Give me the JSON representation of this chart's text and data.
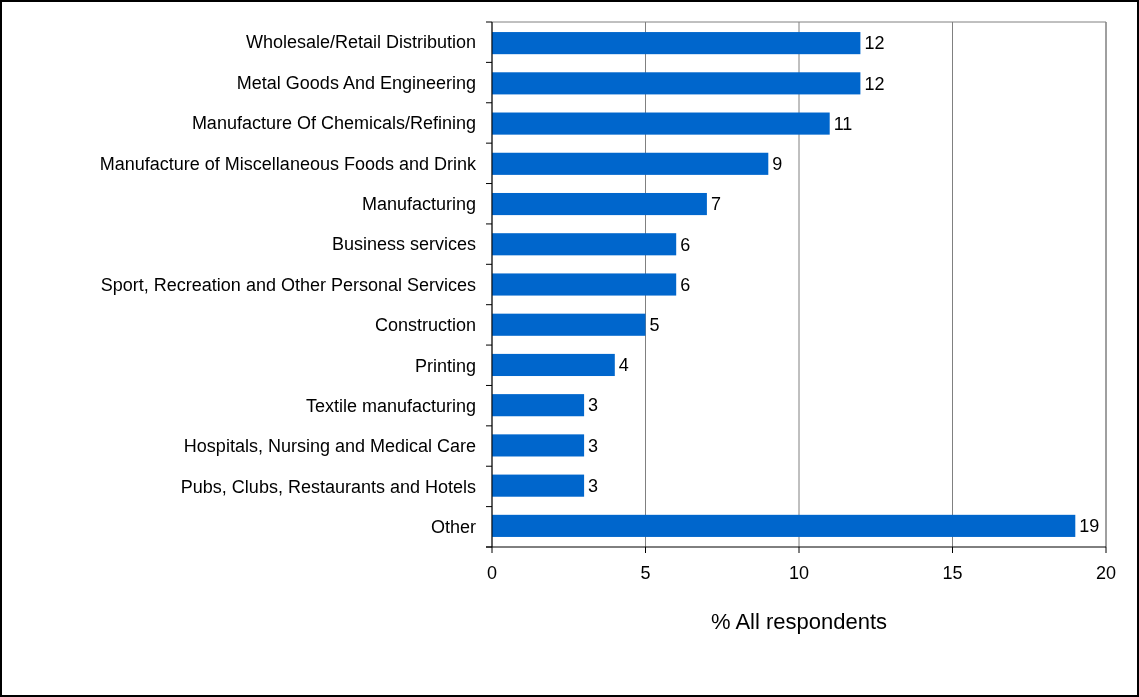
{
  "chart_data": {
    "type": "bar",
    "orientation": "horizontal",
    "categories": [
      "Wholesale/Retail Distribution",
      "Metal Goods And Engineering",
      "Manufacture Of Chemicals/Refining",
      "Manufacture of Miscellaneous Foods and Drink",
      "Manufacturing",
      "Business services",
      "Sport, Recreation and Other Personal Services",
      "Construction",
      "Printing",
      "Textile manufacturing",
      "Hospitals, Nursing and Medical Care",
      "Pubs, Clubs, Restaurants and Hotels",
      "Other"
    ],
    "values": [
      12,
      12,
      11,
      9,
      7,
      6,
      6,
      5,
      4,
      3,
      3,
      3,
      19
    ],
    "color": "#0066cc",
    "xlabel": "% All respondents",
    "xlim": [
      0,
      20
    ],
    "xticks": [
      0,
      5,
      10,
      15,
      20
    ],
    "grid": "x",
    "data_labels": true
  }
}
